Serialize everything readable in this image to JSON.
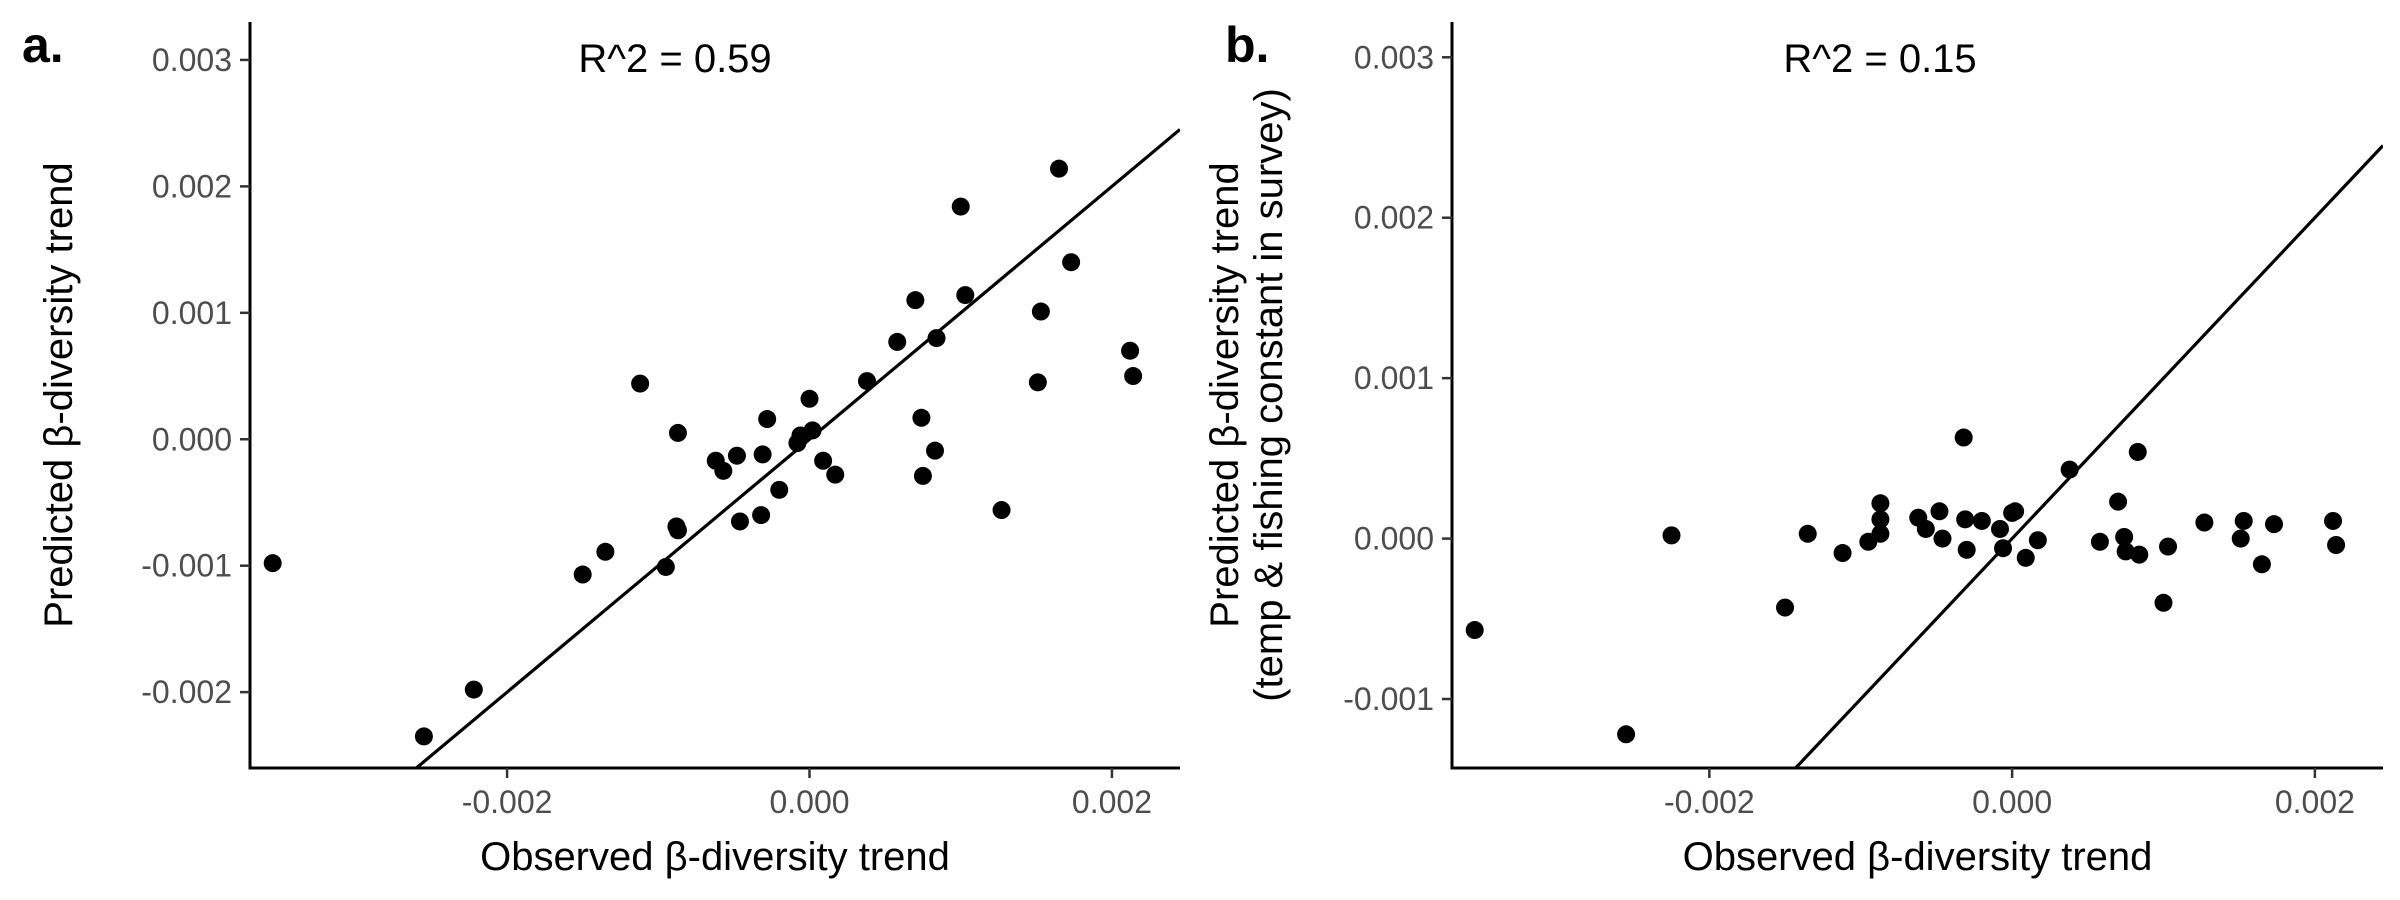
{
  "chart_data": [
    {
      "type": "scatter",
      "panel_label": "a.",
      "annotation": "R^2 = 0.59",
      "xlabel": "Observed β-diversity trend",
      "ylabel": [
        "Predicted β-diversity trend"
      ],
      "xlim": [
        -0.0037,
        0.00245
      ],
      "ylim": [
        -0.0026,
        0.0033
      ],
      "xticks": [
        -0.002,
        0.0,
        0.002
      ],
      "xtick_labels": [
        "-0.002",
        "0.000",
        "0.002"
      ],
      "yticks": [
        -0.002,
        -0.001,
        0.0,
        0.001,
        0.002,
        0.003
      ],
      "ytick_labels": [
        "-0.002",
        "-0.001",
        "0.000",
        "0.001",
        "0.002",
        "0.003"
      ],
      "grid": false,
      "reference_line": {
        "slope": 1,
        "intercept": 0
      },
      "points": [
        {
          "x": -0.00355,
          "y": -0.00098
        },
        {
          "x": -0.00255,
          "y": -0.00235
        },
        {
          "x": -0.00222,
          "y": -0.00198
        },
        {
          "x": -0.0015,
          "y": -0.00107
        },
        {
          "x": -0.00135,
          "y": -0.00089
        },
        {
          "x": -0.00112,
          "y": 0.00044
        },
        {
          "x": -0.00095,
          "y": -0.00101
        },
        {
          "x": -0.00087,
          "y": 5e-05
        },
        {
          "x": -0.00088,
          "y": -0.00069
        },
        {
          "x": -0.00087,
          "y": -0.00072
        },
        {
          "x": -0.00062,
          "y": -0.00017
        },
        {
          "x": -0.00057,
          "y": -0.00025
        },
        {
          "x": -0.00048,
          "y": -0.00013
        },
        {
          "x": -0.00046,
          "y": -0.00065
        },
        {
          "x": -0.00032,
          "y": -0.0006
        },
        {
          "x": -0.00031,
          "y": -0.00012
        },
        {
          "x": -0.00028,
          "y": 0.00016
        },
        {
          "x": -0.0002,
          "y": -0.0004
        },
        {
          "x": -8e-05,
          "y": -3e-05
        },
        {
          "x": -6e-05,
          "y": 3e-05
        },
        {
          "x": 0.0,
          "y": 0.00032
        },
        {
          "x": 2e-05,
          "y": 7e-05
        },
        {
          "x": 9e-05,
          "y": -0.00017
        },
        {
          "x": 0.00017,
          "y": -0.00028
        },
        {
          "x": 0.00038,
          "y": 0.00046
        },
        {
          "x": 0.00058,
          "y": 0.00077
        },
        {
          "x": 0.0007,
          "y": 0.0011
        },
        {
          "x": 0.00074,
          "y": 0.00017
        },
        {
          "x": 0.00075,
          "y": -0.00029
        },
        {
          "x": 0.00084,
          "y": 0.0008
        },
        {
          "x": 0.00083,
          "y": -9e-05
        },
        {
          "x": 0.001,
          "y": 0.00184
        },
        {
          "x": 0.00103,
          "y": 0.00114
        },
        {
          "x": 0.00127,
          "y": -0.00056
        },
        {
          "x": 0.00151,
          "y": 0.00045
        },
        {
          "x": 0.00153,
          "y": 0.00101
        },
        {
          "x": 0.00165,
          "y": 0.00214
        },
        {
          "x": 0.00173,
          "y": 0.0014
        },
        {
          "x": 0.00212,
          "y": 0.0007
        },
        {
          "x": 0.00214,
          "y": 0.0005
        }
      ]
    },
    {
      "type": "scatter",
      "panel_label": "b.",
      "annotation": "R^2 = 0.15",
      "xlabel": "Observed β-diversity trend",
      "ylabel": [
        "Predicted β-diversity trend",
        "(temp & fishing constant in survey)"
      ],
      "xlim": [
        -0.0037,
        0.00245
      ],
      "ylim": [
        -0.00143,
        0.00322
      ],
      "xticks": [
        -0.002,
        0.0,
        0.002
      ],
      "xtick_labels": [
        "-0.002",
        "0.000",
        "0.002"
      ],
      "yticks": [
        -0.001,
        0.0,
        0.001,
        0.002,
        0.003
      ],
      "ytick_labels": [
        "-0.001",
        "0.000",
        "0.001",
        "0.002",
        "0.003"
      ],
      "grid": false,
      "reference_line": {
        "slope": 1,
        "intercept": 0
      },
      "points": [
        {
          "x": -0.00355,
          "y": -0.00057
        },
        {
          "x": -0.00255,
          "y": -0.00122
        },
        {
          "x": -0.00225,
          "y": 2e-05
        },
        {
          "x": -0.0015,
          "y": -0.00043
        },
        {
          "x": -0.00135,
          "y": 3e-05
        },
        {
          "x": -0.00112,
          "y": -9e-05
        },
        {
          "x": -0.00095,
          "y": -2e-05
        },
        {
          "x": -0.00087,
          "y": 0.00022
        },
        {
          "x": -0.00087,
          "y": 0.00012
        },
        {
          "x": -0.00087,
          "y": 3e-05
        },
        {
          "x": -0.00062,
          "y": 0.00013
        },
        {
          "x": -0.00057,
          "y": 6e-05
        },
        {
          "x": -0.00048,
          "y": 0.00017
        },
        {
          "x": -0.00046,
          "y": 0.0
        },
        {
          "x": -0.00032,
          "y": 0.00063
        },
        {
          "x": -0.00031,
          "y": 0.00012
        },
        {
          "x": -0.0003,
          "y": -7e-05
        },
        {
          "x": -0.0002,
          "y": 0.00011
        },
        {
          "x": -8e-05,
          "y": 6e-05
        },
        {
          "x": -6e-05,
          "y": -6e-05
        },
        {
          "x": 0.0,
          "y": 0.00016
        },
        {
          "x": 2e-05,
          "y": 0.00017
        },
        {
          "x": 9e-05,
          "y": -0.00012
        },
        {
          "x": 0.00017,
          "y": -1e-05
        },
        {
          "x": 0.00038,
          "y": 0.00043
        },
        {
          "x": 0.00058,
          "y": -2e-05
        },
        {
          "x": 0.0007,
          "y": 0.00023
        },
        {
          "x": 0.00074,
          "y": 1e-05
        },
        {
          "x": 0.00075,
          "y": -8e-05
        },
        {
          "x": 0.00084,
          "y": -0.0001
        },
        {
          "x": 0.00083,
          "y": 0.00054
        },
        {
          "x": 0.001,
          "y": -0.0004
        },
        {
          "x": 0.00103,
          "y": -5e-05
        },
        {
          "x": 0.00127,
          "y": 0.0001
        },
        {
          "x": 0.00151,
          "y": 0.0
        },
        {
          "x": 0.00153,
          "y": 0.00011
        },
        {
          "x": 0.00165,
          "y": -0.00016
        },
        {
          "x": 0.00173,
          "y": 9e-05
        },
        {
          "x": 0.00212,
          "y": 0.00011
        },
        {
          "x": 0.00214,
          "y": -4e-05
        }
      ]
    }
  ]
}
